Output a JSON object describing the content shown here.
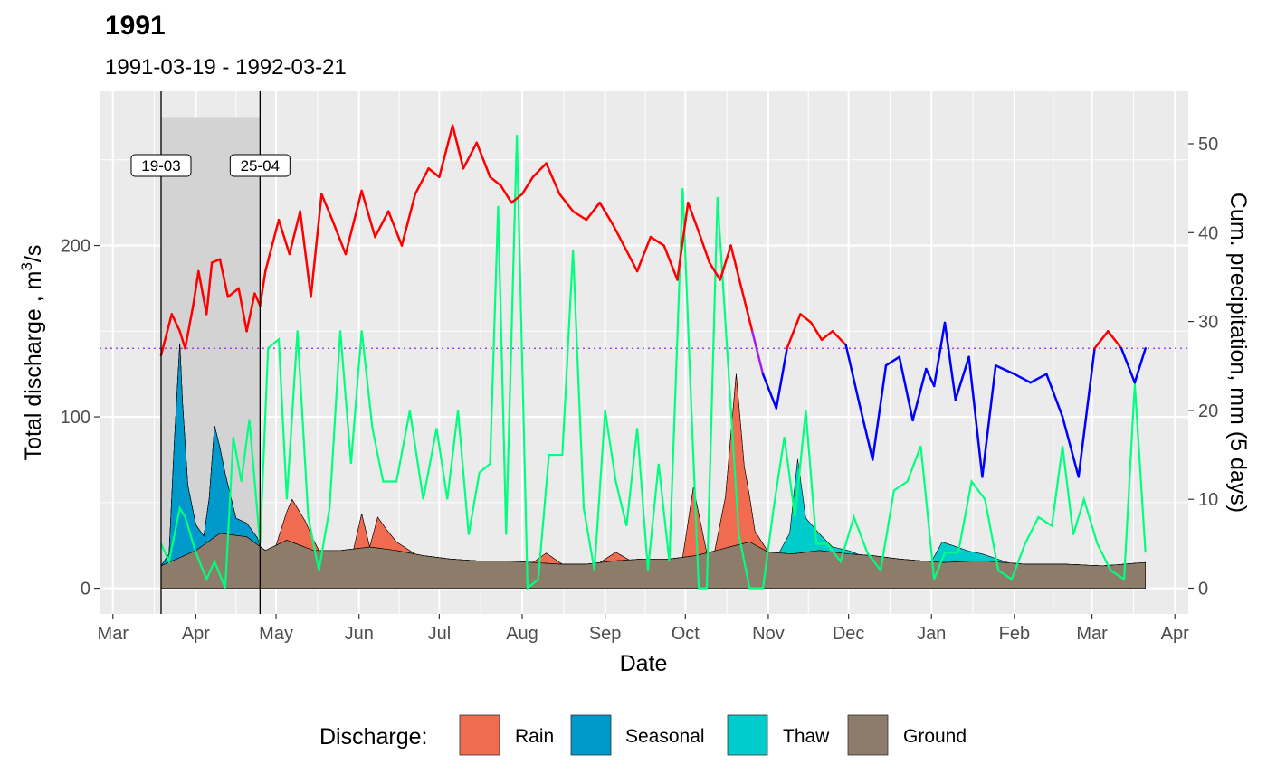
{
  "chart_data": {
    "type": "area",
    "title": "1991",
    "subtitle": "1991-03-19 - 1992-03-21",
    "xlabel": "Date",
    "ylabel": "Total discharge ,  m³/s",
    "ylabel_base": "Total discharge ,  m",
    "ylabel_sup": "3",
    "ylabel_tail": "/s",
    "y2label": "Cum. precipitation, mm (5 days)",
    "x_ticks": [
      "Mar",
      "Apr",
      "May",
      "Jun",
      "Jul",
      "Aug",
      "Sep",
      "Oct",
      "Nov",
      "Dec",
      "Jan",
      "Feb",
      "Mar",
      "Apr"
    ],
    "x_tick_dates": [
      "1991-03-01",
      "1991-04-01",
      "1991-05-01",
      "1991-06-01",
      "1991-07-01",
      "1991-08-01",
      "1991-09-01",
      "1991-10-01",
      "1991-11-01",
      "1991-12-01",
      "1992-01-01",
      "1992-02-01",
      "1992-03-01",
      "1992-04-01"
    ],
    "xlim": [
      "1991-02-24",
      "1992-04-06"
    ],
    "y_ticks": [
      0,
      100,
      200
    ],
    "ylim": [
      -15,
      290
    ],
    "y2_ticks": [
      0,
      10,
      20,
      30,
      40,
      50
    ],
    "y2lim": [
      -2.9,
      55.9
    ],
    "reference_line": {
      "y": 140,
      "color": "#a020f0"
    },
    "phase_period": {
      "start": "1991-03-19",
      "end": "1991-04-25",
      "start_label": "19-03",
      "end_label": "25-04",
      "shade_top": 275
    },
    "legend": {
      "title": "Discharge:",
      "position": "bottom",
      "items": [
        {
          "name": "Rain",
          "color": "#f06b4f"
        },
        {
          "name": "Seasonal",
          "color": "#0099cc"
        },
        {
          "name": "Thaw",
          "color": "#00cccc"
        },
        {
          "name": "Ground",
          "color": "#8c7c69"
        }
      ]
    },
    "series": [
      {
        "name": "Ground",
        "color": "#8c7c69",
        "x": [
          "1991-03-19",
          "1991-04-01",
          "1991-04-10",
          "1991-04-20",
          "1991-04-27",
          "1991-05-05",
          "1991-05-15",
          "1991-05-25",
          "1991-06-05",
          "1991-06-15",
          "1991-06-25",
          "1991-07-05",
          "1991-07-15",
          "1991-07-25",
          "1991-08-05",
          "1991-08-15",
          "1991-08-25",
          "1991-09-05",
          "1991-09-15",
          "1991-09-25",
          "1991-10-05",
          "1991-10-15",
          "1991-10-25",
          "1991-11-01",
          "1991-11-10",
          "1991-11-20",
          "1991-12-01",
          "1991-12-10",
          "1991-12-20",
          "1992-01-05",
          "1992-01-20",
          "1992-02-05",
          "1992-02-20",
          "1992-03-05",
          "1992-03-21"
        ],
        "values": [
          13,
          22,
          32,
          30,
          22,
          28,
          22,
          22,
          24,
          22,
          19,
          17,
          16,
          16,
          15,
          14,
          14,
          16,
          17,
          17,
          19,
          23,
          27,
          21,
          20,
          22,
          20,
          19,
          17,
          15,
          16,
          14,
          14,
          13,
          15
        ]
      },
      {
        "name": "Seasonal",
        "color": "#0099cc",
        "x": [
          "1991-03-19",
          "1991-03-22",
          "1991-03-24",
          "1991-03-26",
          "1991-03-27",
          "1991-03-29",
          "1991-04-01",
          "1991-04-04",
          "1991-04-06",
          "1991-04-08",
          "1991-04-12",
          "1991-04-16",
          "1991-04-20",
          "1991-04-25"
        ],
        "values": [
          0,
          5,
          70,
          125,
          90,
          40,
          15,
          5,
          25,
          65,
          35,
          10,
          8,
          3
        ]
      },
      {
        "name": "Rain",
        "color": "#f06b4f",
        "x": [
          "1991-05-01",
          "1991-05-07",
          "1991-05-12",
          "1991-05-17",
          "1991-05-30",
          "1991-06-02",
          "1991-06-05",
          "1991-06-08",
          "1991-06-11",
          "1991-06-15",
          "1991-06-22",
          "1991-08-05",
          "1991-08-10",
          "1991-08-16",
          "1991-08-30",
          "1991-09-05",
          "1991-09-10",
          "1991-09-30",
          "1991-10-04",
          "1991-10-09",
          "1991-10-12",
          "1991-10-16",
          "1991-10-20",
          "1991-10-23",
          "1991-10-27",
          "1991-11-01"
        ],
        "values": [
          0,
          25,
          15,
          0,
          0,
          20,
          0,
          18,
          12,
          5,
          0,
          0,
          6,
          0,
          0,
          5,
          0,
          0,
          40,
          0,
          0,
          30,
          100,
          45,
          8,
          0
        ]
      },
      {
        "name": "Thaw",
        "color": "#00cccc",
        "x": [
          "1991-11-05",
          "1991-11-09",
          "1991-11-12",
          "1991-11-15",
          "1991-11-20",
          "1991-11-25",
          "1991-12-01",
          "1991-12-05",
          "1991-12-20",
          "1992-01-01",
          "1992-01-05",
          "1992-01-15",
          "1992-01-30",
          "1992-02-05"
        ],
        "values": [
          0,
          12,
          55,
          20,
          10,
          3,
          2,
          0,
          0,
          0,
          12,
          6,
          0,
          0
        ]
      },
      {
        "name": "Total discharge",
        "x": [
          "1991-03-19",
          "1991-03-23",
          "1991-03-26",
          "1991-03-28",
          "1991-03-31",
          "1991-04-02",
          "1991-04-05",
          "1991-04-07",
          "1991-04-10",
          "1991-04-13",
          "1991-04-17",
          "1991-04-20",
          "1991-04-23",
          "1991-04-25",
          "1991-04-27",
          "1991-05-02",
          "1991-05-06",
          "1991-05-10",
          "1991-05-14",
          "1991-05-18",
          "1991-05-22",
          "1991-05-27",
          "1991-06-02",
          "1991-06-07",
          "1991-06-12",
          "1991-06-17",
          "1991-06-22",
          "1991-06-27",
          "1991-07-01",
          "1991-07-06",
          "1991-07-10",
          "1991-07-15",
          "1991-07-20",
          "1991-07-24",
          "1991-07-28",
          "1991-08-01",
          "1991-08-05",
          "1991-08-10",
          "1991-08-15",
          "1991-08-20",
          "1991-08-25",
          "1991-08-30",
          "1991-09-04",
          "1991-09-08",
          "1991-09-13",
          "1991-09-18",
          "1991-09-23",
          "1991-09-28",
          "1991-10-02",
          "1991-10-06",
          "1991-10-10",
          "1991-10-14",
          "1991-10-18",
          "1991-10-22",
          "1991-10-26",
          "1991-10-30",
          "1991-11-04",
          "1991-11-08",
          "1991-11-13",
          "1991-11-17",
          "1991-11-21",
          "1991-11-25",
          "1991-11-30",
          "1991-12-05",
          "1991-12-10",
          "1991-12-15",
          "1991-12-20",
          "1991-12-25",
          "1991-12-30",
          "1992-01-02",
          "1992-01-06",
          "1992-01-10",
          "1992-01-15",
          "1992-01-20",
          "1992-01-25",
          "1992-02-01",
          "1992-02-07",
          "1992-02-13",
          "1992-02-19",
          "1992-02-25",
          "1992-03-02",
          "1992-03-07",
          "1992-03-12",
          "1992-03-17",
          "1992-03-21"
        ],
        "values": [
          136,
          160,
          150,
          140,
          165,
          185,
          160,
          190,
          192,
          170,
          175,
          150,
          172,
          165,
          185,
          215,
          195,
          220,
          170,
          230,
          215,
          195,
          232,
          205,
          220,
          200,
          230,
          245,
          240,
          270,
          245,
          260,
          240,
          235,
          225,
          230,
          240,
          248,
          230,
          220,
          215,
          225,
          212,
          200,
          185,
          205,
          200,
          180,
          225,
          208,
          190,
          180,
          200,
          175,
          150,
          125,
          105,
          140,
          160,
          155,
          145,
          150,
          142,
          108,
          75,
          130,
          135,
          98,
          128,
          118,
          155,
          110,
          135,
          65,
          130,
          125,
          120,
          125,
          100,
          65,
          140,
          150,
          140,
          120,
          140
        ]
      },
      {
        "name": "Cum. precipitation",
        "color": "#00ff7f",
        "x": [
          "1991-03-19",
          "1991-03-22",
          "1991-03-26",
          "1991-03-28",
          "1991-04-01",
          "1991-04-05",
          "1991-04-08",
          "1991-04-12",
          "1991-04-15",
          "1991-04-18",
          "1991-04-21",
          "1991-04-25",
          "1991-04-28",
          "1991-05-02",
          "1991-05-05",
          "1991-05-09",
          "1991-05-13",
          "1991-05-17",
          "1991-05-21",
          "1991-05-25",
          "1991-05-29",
          "1991-06-02",
          "1991-06-06",
          "1991-06-10",
          "1991-06-15",
          "1991-06-20",
          "1991-06-25",
          "1991-06-30",
          "1991-07-04",
          "1991-07-08",
          "1991-07-12",
          "1991-07-16",
          "1991-07-20",
          "1991-07-23",
          "1991-07-26",
          "1991-07-30",
          "1991-08-03",
          "1991-08-07",
          "1991-08-11",
          "1991-08-16",
          "1991-08-20",
          "1991-08-24",
          "1991-08-28",
          "1991-09-01",
          "1991-09-05",
          "1991-09-09",
          "1991-09-13",
          "1991-09-17",
          "1991-09-21",
          "1991-09-25",
          "1991-09-30",
          "1991-10-03",
          "1991-10-06",
          "1991-10-09",
          "1991-10-13",
          "1991-10-17",
          "1991-10-21",
          "1991-10-25",
          "1991-10-30",
          "1991-11-03",
          "1991-11-07",
          "1991-11-11",
          "1991-11-15",
          "1991-11-19",
          "1991-11-23",
          "1991-11-28",
          "1991-12-03",
          "1991-12-08",
          "1991-12-13",
          "1991-12-18",
          "1991-12-23",
          "1991-12-28",
          "1992-01-02",
          "1992-01-06",
          "1992-01-11",
          "1992-01-16",
          "1992-01-21",
          "1992-01-26",
          "1992-01-31",
          "1992-02-05",
          "1992-02-10",
          "1992-02-15",
          "1992-02-19",
          "1992-02-23",
          "1992-02-27",
          "1992-03-03",
          "1992-03-08",
          "1992-03-13",
          "1992-03-17",
          "1992-03-21"
        ],
        "values": [
          5,
          3,
          9,
          8,
          4,
          1,
          3,
          0,
          17,
          12,
          19,
          5,
          27,
          28,
          10,
          29,
          8,
          2,
          9,
          29,
          14,
          29,
          18,
          12,
          12,
          20,
          10,
          18,
          10,
          20,
          6,
          13,
          14,
          43,
          6,
          51,
          0,
          1,
          15,
          15,
          38,
          9,
          2,
          20,
          12,
          7,
          18,
          2,
          14,
          3,
          45,
          22,
          0,
          0,
          44,
          25,
          6,
          0,
          0,
          9,
          17,
          8,
          20,
          5,
          5,
          3,
          8,
          4,
          2,
          11,
          12,
          16,
          1,
          4,
          4,
          12,
          10,
          2,
          1,
          5,
          8,
          7,
          16,
          6,
          10,
          5,
          2,
          1,
          23,
          4
        ]
      }
    ]
  }
}
